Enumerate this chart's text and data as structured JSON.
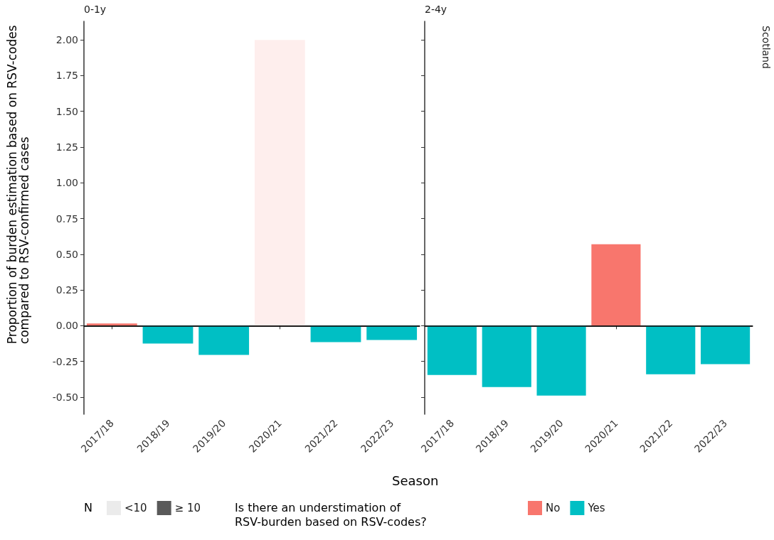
{
  "chart_data": [
    {
      "type": "bar",
      "title": "0-1y",
      "xlabel": "Season",
      "ylabel": "Proportion of burden estimation based on RSV-codes compared to RSV-confirmed cases",
      "legend_title": "N",
      "legend": "bottom left",
      "categories": [
        "2017/18",
        "2018/19",
        "2019/20",
        "2020/21",
        "2021/22",
        "2022/23"
      ],
      "series": [
        {
          "color": "#f8766d",
          "values": [
            0.015,
            null,
            null,
            null,
            null,
            null
          ]
        },
        {
          "color": "#00bfc4",
          "values": [
            null,
            -0.125,
            -0.205,
            null,
            -0.115,
            -0.1
          ]
        },
        {
          "color": "#feeeed",
          "values": [
            null,
            null,
            null,
            2.0,
            null,
            null
          ]
        },
        {
          "name": "<10",
          "color": "#ebebeb",
          "values": [
            null,
            null,
            null,
            null,
            null,
            null
          ]
        },
        {
          "name": "≥ 10",
          "color": "#595959",
          "values": [
            null,
            null,
            null,
            null,
            null,
            null
          ]
        }
      ],
      "ylim": [
        -0.62,
        2.13
      ],
      "yticks": [
        {
          "value": -0.5,
          "label": "-0.50"
        },
        {
          "value": -0.25,
          "label": "-0.25"
        },
        {
          "value": 0,
          "label": "0.00"
        },
        {
          "value": 0.25,
          "label": "0.25"
        },
        {
          "value": 0.5,
          "label": "0.50"
        },
        {
          "value": 0.75,
          "label": "0.75"
        },
        {
          "value": 1,
          "label": "1.00"
        },
        {
          "value": 1.25,
          "label": "1.25"
        },
        {
          "value": 1.5,
          "label": "1.50"
        },
        {
          "value": 1.75,
          "label": "1.75"
        },
        {
          "value": 2,
          "label": "2.00"
        }
      ],
      "ref_lines": [
        {
          "axis": "y",
          "value": 0,
          "color": "#000000"
        }
      ],
      "grid": false
    },
    {
      "type": "bar",
      "title": "2-4y",
      "legend_title": "Is there an understimation of RSV-burden based on RSV-codes?",
      "legend": "bottom",
      "annotations": [
        "Scotland"
      ],
      "categories": [
        "2017/18",
        "2018/19",
        "2019/20",
        "2020/21",
        "2021/22",
        "2022/23"
      ],
      "series": [
        {
          "name": "No",
          "color": "#f8766d",
          "values": [
            null,
            null,
            null,
            0.57,
            null,
            null
          ]
        },
        {
          "name": "Yes",
          "color": "#00bfc4",
          "values": [
            -0.345,
            -0.43,
            -0.49,
            null,
            -0.34,
            -0.27
          ]
        }
      ],
      "ylim": [
        -0.62,
        2.13
      ],
      "yticks": [
        {
          "value": -0.5,
          "label": null
        },
        {
          "value": -0.25,
          "label": null
        },
        {
          "value": 0,
          "label": null
        },
        {
          "value": 0.25,
          "label": null
        },
        {
          "value": 0.5,
          "label": null
        },
        {
          "value": 0.75,
          "label": null
        },
        {
          "value": 1,
          "label": null
        },
        {
          "value": 1.25,
          "label": null
        },
        {
          "value": 1.5,
          "label": null
        },
        {
          "value": 1.75,
          "label": null
        },
        {
          "value": 2,
          "label": null
        }
      ],
      "tick_labels": "x",
      "ref_lines": [
        {
          "axis": "y",
          "value": 0,
          "color": "#000000"
        }
      ],
      "grid": false
    }
  ]
}
